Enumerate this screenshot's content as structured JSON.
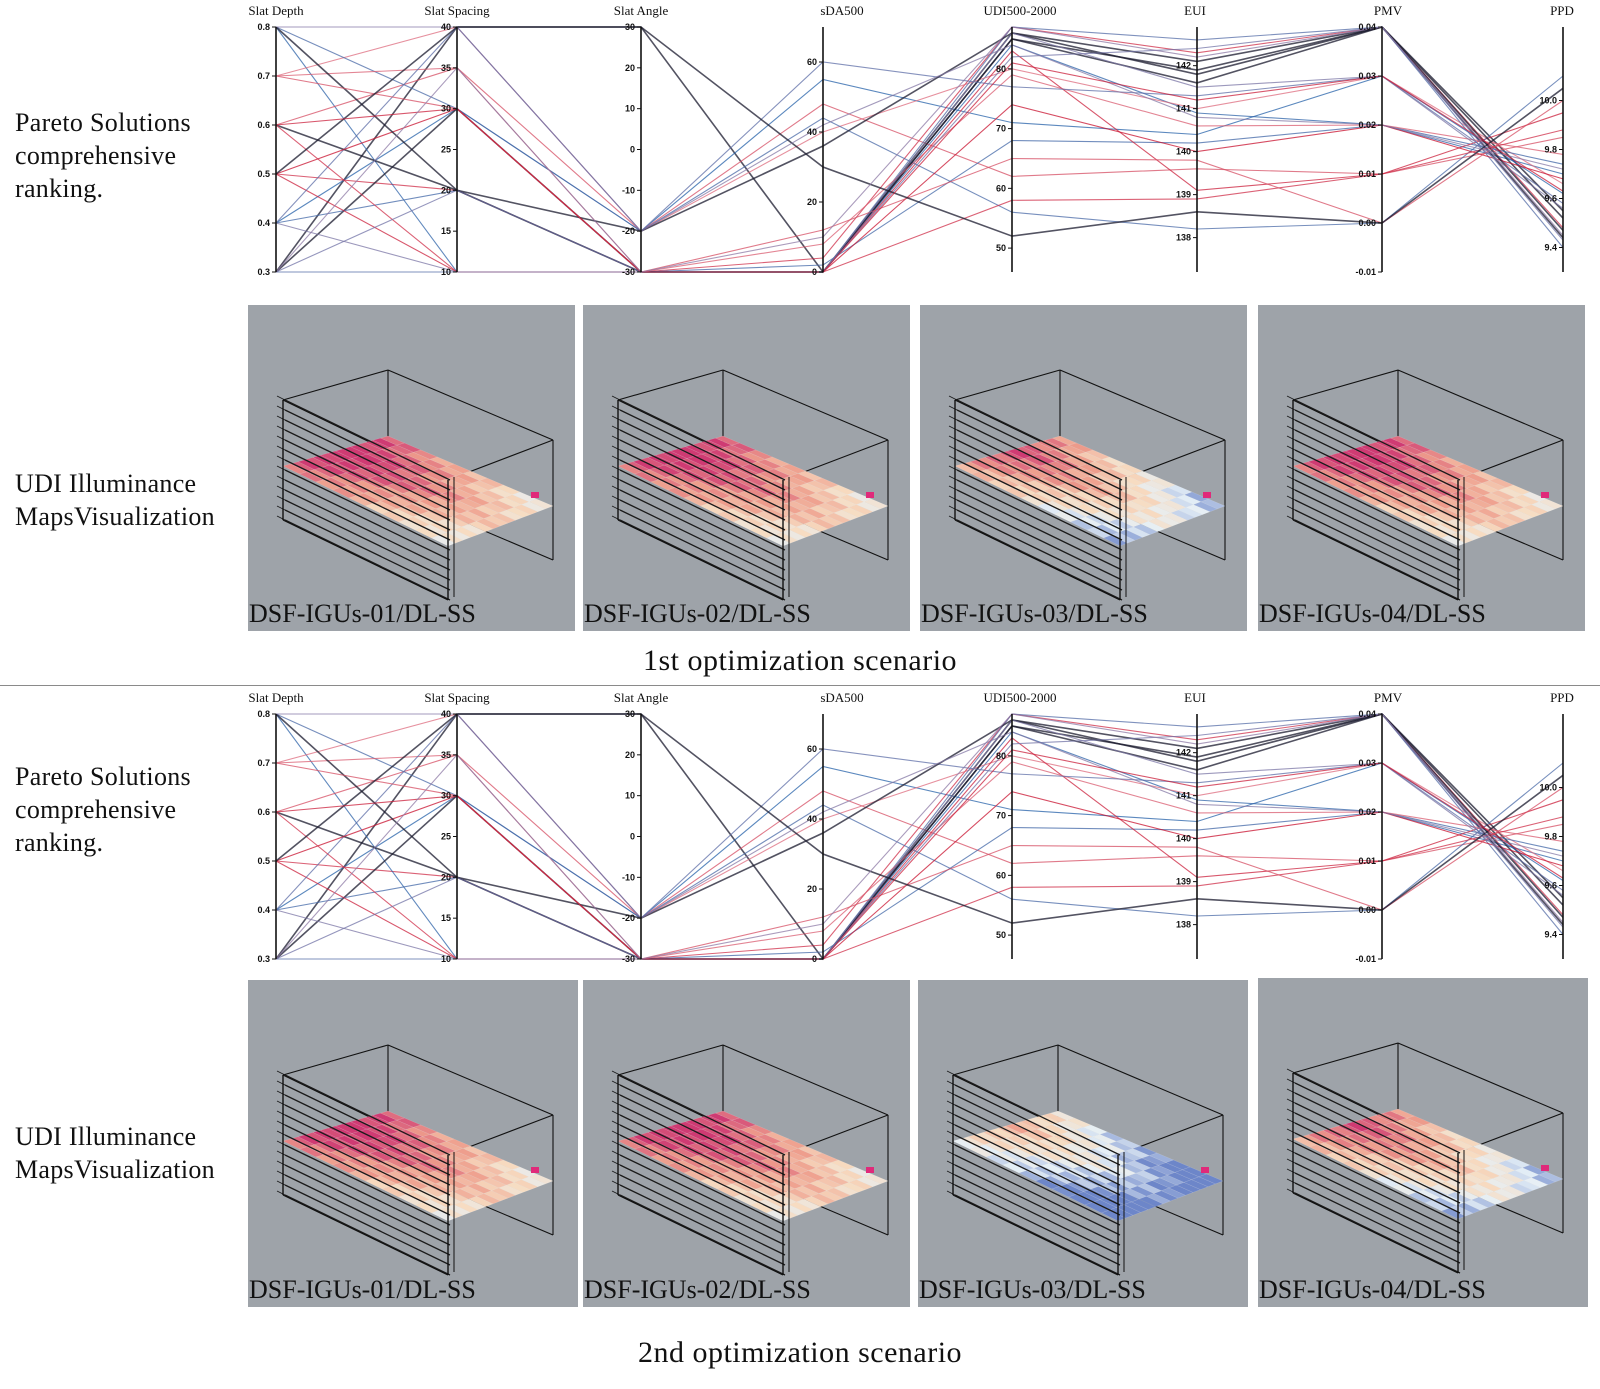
{
  "scenarios": [
    {
      "title": "1st  optimization scenario",
      "ranking_label": "Pareto Solutions\ncomprehensive\nranking.",
      "udi_label": "UDI  Illuminance\nMapsVisualization",
      "panels": [
        {
          "caption": "DSF-IGUs-01/DL-SS",
          "map": "warm"
        },
        {
          "caption": "DSF-IGUs-02/DL-SS",
          "map": "warm"
        },
        {
          "caption": "DSF-IGUs-03/DL-SS",
          "map": "mixed"
        },
        {
          "caption": "DSF-IGUs-04/DL-SS",
          "map": "warm"
        }
      ]
    },
    {
      "title": "2nd  optimization scenario",
      "ranking_label": "Pareto Solutions\ncomprehensive\nranking.",
      "udi_label": "UDI  Illuminance\nMapsVisualization",
      "panels": [
        {
          "caption": "DSF-IGUs-01/DL-SS",
          "map": "warm"
        },
        {
          "caption": "DSF-IGUs-02/DL-SS",
          "map": "warm"
        },
        {
          "caption": "DSF-IGUs-03/DL-SS",
          "map": "cool"
        },
        {
          "caption": "DSF-IGUs-04/DL-SS",
          "map": "mixed"
        }
      ]
    }
  ],
  "colors": {
    "panel_bg": "#9ea3a9",
    "line_high": "#c8102e",
    "line_low": "#1f5fa8",
    "line_dark": "#1a1a2e"
  },
  "chart_data": [
    {
      "type": "parallel_coordinates",
      "scenario": 1,
      "axes": [
        {
          "name": "Slat Depth",
          "range": [
            0.3,
            0.8
          ],
          "ticks": [
            "0.8",
            "0.7",
            "0.6",
            "0.5",
            "0.4",
            "0.3"
          ],
          "tick_values": [
            0.8,
            0.7,
            0.6,
            0.5,
            0.4,
            0.3
          ]
        },
        {
          "name": "Slat Spacing",
          "range": [
            10,
            40
          ],
          "ticks": [
            "40",
            "35",
            "30",
            "25",
            "20",
            "15",
            "10"
          ],
          "tick_values": [
            40,
            35,
            30,
            25,
            20,
            15,
            10
          ]
        },
        {
          "name": "Slat Angle",
          "range": [
            -30,
            30
          ],
          "ticks": [
            "30",
            "20",
            "10",
            "0",
            "-10",
            "-20",
            "-30"
          ],
          "tick_values": [
            30,
            20,
            10,
            0,
            -10,
            -20,
            -30
          ]
        },
        {
          "name": "sDA500",
          "range": [
            0,
            70
          ],
          "ticks": [
            "60",
            "40",
            "20",
            "0"
          ],
          "tick_values": [
            60,
            40,
            20,
            0
          ]
        },
        {
          "name": "UDI500-2000",
          "range": [
            46,
            87
          ],
          "ticks": [
            "80",
            "70",
            "60",
            "50"
          ],
          "tick_values": [
            80,
            70,
            60,
            50
          ]
        },
        {
          "name": "EUI",
          "range": [
            137.2,
            142.9
          ],
          "ticks": [
            "142",
            "141",
            "140",
            "139",
            "138"
          ],
          "tick_values": [
            142,
            141,
            140,
            139,
            138
          ]
        },
        {
          "name": "PMV",
          "range": [
            -0.01,
            0.04
          ],
          "ticks": [
            "0.04",
            "0.03",
            "0.02",
            "0.01",
            "0.00",
            "-0.01"
          ],
          "tick_values": [
            0.04,
            0.03,
            0.02,
            0.01,
            0.0,
            -0.01
          ]
        },
        {
          "name": "PPD",
          "range": [
            9.3,
            10.3
          ],
          "ticks": [
            "10.0",
            "9.8",
            "9.6",
            "9.4"
          ],
          "tick_values": [
            10.0,
            9.8,
            9.6,
            9.4
          ]
        }
      ],
      "solutions": [
        [
          0.3,
          40,
          30,
          0,
          85,
          141.6,
          0.04,
          9.55
        ],
        [
          0.4,
          30,
          -20,
          55,
          71,
          140.4,
          0.03,
          9.62
        ],
        [
          0.5,
          20,
          -30,
          4,
          87,
          142.3,
          0.04,
          9.48
        ],
        [
          0.8,
          10,
          -30,
          0,
          84,
          140.9,
          0.02,
          9.7
        ],
        [
          0.6,
          35,
          -20,
          48,
          62,
          139.6,
          0.01,
          9.85
        ],
        [
          0.3,
          30,
          -30,
          0,
          86,
          142.1,
          0.04,
          9.44
        ],
        [
          0.7,
          40,
          -20,
          40,
          80,
          141.0,
          0.03,
          9.66
        ],
        [
          0.4,
          20,
          -30,
          2,
          68,
          140.2,
          0.02,
          9.74
        ],
        [
          0.5,
          10,
          -30,
          0,
          83,
          139.1,
          0.01,
          9.95
        ],
        [
          0.8,
          30,
          -20,
          44,
          56,
          138.2,
          0.0,
          10.1
        ],
        [
          0.6,
          20,
          -30,
          0,
          85,
          141.9,
          0.04,
          9.52
        ],
        [
          0.3,
          10,
          -30,
          0,
          87,
          142.6,
          0.04,
          9.4
        ],
        [
          0.7,
          35,
          -30,
          8,
          79,
          140.6,
          0.02,
          9.78
        ],
        [
          0.4,
          40,
          -20,
          60,
          77,
          141.3,
          0.03,
          9.58
        ],
        [
          0.5,
          30,
          -30,
          0,
          74,
          140.0,
          0.02,
          9.68
        ],
        [
          0.8,
          20,
          -20,
          36,
          86,
          141.8,
          0.04,
          9.47
        ],
        [
          0.6,
          10,
          -30,
          0,
          58,
          138.9,
          0.01,
          9.88
        ],
        [
          0.3,
          20,
          -30,
          0,
          82,
          142.4,
          0.04,
          9.43
        ],
        [
          0.7,
          30,
          -30,
          12,
          65,
          139.8,
          0.0,
          10.0
        ],
        [
          0.4,
          10,
          -30,
          0,
          86,
          141.5,
          0.03,
          9.56
        ],
        [
          0.5,
          40,
          30,
          30,
          52,
          138.6,
          0.0,
          10.05
        ],
        [
          0.8,
          40,
          -20,
          42,
          84,
          140.8,
          0.02,
          9.72
        ],
        [
          0.6,
          30,
          -30,
          0,
          81,
          141.2,
          0.03,
          9.63
        ],
        [
          0.3,
          35,
          -30,
          10,
          87,
          142.2,
          0.04,
          9.45
        ]
      ]
    },
    {
      "type": "parallel_coordinates",
      "scenario": 2,
      "axes": [
        {
          "name": "Slat Depth",
          "range": [
            0.3,
            0.8
          ],
          "ticks": [
            "0.8",
            "0.7",
            "0.6",
            "0.5",
            "0.4",
            "0.3"
          ],
          "tick_values": [
            0.8,
            0.7,
            0.6,
            0.5,
            0.4,
            0.3
          ]
        },
        {
          "name": "Slat Spacing",
          "range": [
            10,
            40
          ],
          "ticks": [
            "40",
            "35",
            "30",
            "25",
            "20",
            "15",
            "10"
          ],
          "tick_values": [
            40,
            35,
            30,
            25,
            20,
            15,
            10
          ]
        },
        {
          "name": "Slat Angle",
          "range": [
            -30,
            30
          ],
          "ticks": [
            "30",
            "20",
            "10",
            "0",
            "-10",
            "-20",
            "-30"
          ],
          "tick_values": [
            30,
            20,
            10,
            0,
            -10,
            -20,
            -30
          ]
        },
        {
          "name": "sDA500",
          "range": [
            0,
            70
          ],
          "ticks": [
            "60",
            "40",
            "20",
            "0"
          ],
          "tick_values": [
            60,
            40,
            20,
            0
          ]
        },
        {
          "name": "UDI500-2000",
          "range": [
            46,
            87
          ],
          "ticks": [
            "80",
            "70",
            "60",
            "50"
          ],
          "tick_values": [
            80,
            70,
            60,
            50
          ]
        },
        {
          "name": "EUI",
          "range": [
            137.2,
            142.9
          ],
          "ticks": [
            "142",
            "141",
            "140",
            "139",
            "138"
          ],
          "tick_values": [
            142,
            141,
            140,
            139,
            138
          ]
        },
        {
          "name": "PMV",
          "range": [
            -0.01,
            0.04
          ],
          "ticks": [
            "0.04",
            "0.03",
            "0.02",
            "0.01",
            "0.00",
            "-0.01"
          ],
          "tick_values": [
            0.04,
            0.03,
            0.02,
            0.01,
            0.0,
            -0.01
          ]
        },
        {
          "name": "PPD",
          "range": [
            9.3,
            10.3
          ],
          "ticks": [
            "10.0",
            "9.8",
            "9.6",
            "9.4"
          ],
          "tick_values": [
            10.0,
            9.8,
            9.6,
            9.4
          ]
        }
      ],
      "solutions": [
        [
          0.3,
          40,
          30,
          0,
          85,
          141.6,
          0.04,
          9.55
        ],
        [
          0.4,
          30,
          -20,
          55,
          71,
          140.4,
          0.03,
          9.62
        ],
        [
          0.5,
          20,
          -30,
          4,
          87,
          142.3,
          0.04,
          9.48
        ],
        [
          0.8,
          10,
          -30,
          0,
          84,
          140.9,
          0.02,
          9.7
        ],
        [
          0.6,
          35,
          -20,
          48,
          62,
          139.6,
          0.01,
          9.85
        ],
        [
          0.3,
          30,
          -30,
          0,
          86,
          142.1,
          0.04,
          9.44
        ],
        [
          0.7,
          40,
          -20,
          40,
          80,
          141.0,
          0.03,
          9.66
        ],
        [
          0.4,
          20,
          -30,
          2,
          68,
          140.2,
          0.02,
          9.74
        ],
        [
          0.5,
          10,
          -30,
          0,
          83,
          139.1,
          0.01,
          9.95
        ],
        [
          0.8,
          30,
          -20,
          44,
          56,
          138.2,
          0.0,
          10.1
        ],
        [
          0.6,
          20,
          -30,
          0,
          85,
          141.9,
          0.04,
          9.52
        ],
        [
          0.3,
          10,
          -30,
          0,
          87,
          142.6,
          0.04,
          9.4
        ],
        [
          0.7,
          35,
          -30,
          8,
          79,
          140.6,
          0.02,
          9.78
        ],
        [
          0.4,
          40,
          -20,
          60,
          77,
          141.3,
          0.03,
          9.58
        ],
        [
          0.5,
          30,
          -30,
          0,
          74,
          140.0,
          0.02,
          9.68
        ],
        [
          0.8,
          20,
          -20,
          36,
          86,
          141.8,
          0.04,
          9.47
        ],
        [
          0.6,
          10,
          -30,
          0,
          58,
          138.9,
          0.01,
          9.88
        ],
        [
          0.3,
          20,
          -30,
          0,
          82,
          142.4,
          0.04,
          9.43
        ],
        [
          0.7,
          30,
          -30,
          12,
          65,
          139.8,
          0.0,
          10.0
        ],
        [
          0.4,
          10,
          -30,
          0,
          86,
          141.5,
          0.03,
          9.56
        ],
        [
          0.5,
          40,
          30,
          30,
          52,
          138.6,
          0.0,
          10.05
        ],
        [
          0.8,
          40,
          -20,
          42,
          84,
          140.8,
          0.02,
          9.72
        ],
        [
          0.6,
          30,
          -30,
          0,
          81,
          141.2,
          0.03,
          9.63
        ],
        [
          0.3,
          35,
          -30,
          10,
          87,
          142.2,
          0.04,
          9.45
        ]
      ]
    }
  ]
}
